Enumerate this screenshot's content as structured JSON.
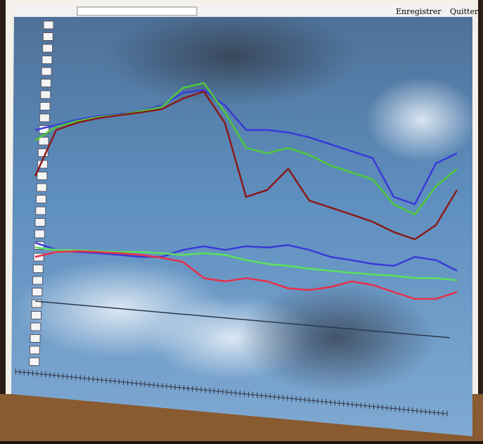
{
  "menu": [
    "Enregistrer",
    "Quitter"
  ],
  "chart_data": {
    "type": "line",
    "categories": [
      null,
      null,
      null,
      null,
      null,
      null,
      null,
      null,
      null,
      null,
      null,
      null,
      null,
      null,
      null,
      null,
      null,
      null,
      null,
      null,
      null
    ],
    "ylim": [
      0,
      100
    ],
    "series": [
      {
        "color": "#3a3ad8",
        "values": [
          71.6,
          72.8,
          74.1,
          75,
          75.5,
          76.2,
          77.6,
          80.7,
          81.4,
          77.6,
          71.6,
          71.6,
          71,
          69.8,
          68.1,
          66.4,
          64.7,
          55.2,
          53.4,
          63.4,
          65.9
        ]
      },
      {
        "color": "#4fc83a",
        "values": [
          69,
          72.4,
          73.8,
          74.8,
          75.3,
          76.2,
          77.2,
          81.9,
          83.1,
          75.9,
          67.2,
          65.9,
          67.2,
          65.5,
          62.9,
          61.2,
          59.5,
          53.4,
          50.9,
          57.8,
          62.1
        ]
      },
      {
        "color": "#8a1a1a",
        "values": [
          60.3,
          71.6,
          73.4,
          74.5,
          75.2,
          75.9,
          76.7,
          79.3,
          81,
          73.3,
          55.2,
          56.9,
          62.1,
          54.3,
          52.6,
          50.9,
          49.1,
          46.6,
          44.8,
          48.3,
          56.9
        ]
      },
      {
        "color": "#3a3ad8",
        "values": [
          44,
          42.2,
          41.7,
          41.4,
          41,
          40.5,
          40.5,
          42.2,
          43.1,
          42.2,
          43.1,
          42.8,
          43.4,
          42.2,
          40.5,
          39.7,
          38.8,
          38.3,
          40.5,
          39.7,
          37.1
        ]
      },
      {
        "color": "#5be05a",
        "values": [
          42.8,
          42.2,
          42.1,
          41.9,
          41.7,
          41.7,
          41.4,
          41,
          41.4,
          41,
          39.7,
          38.8,
          38.3,
          37.6,
          37.1,
          36.6,
          36.2,
          35.9,
          35.3,
          35.3,
          34.8
        ]
      },
      {
        "color": "#e8304a",
        "values": [
          40.5,
          41.7,
          41.9,
          41.7,
          41.4,
          41,
          40.3,
          39.3,
          35.3,
          34.5,
          35.3,
          34.5,
          32.8,
          32.4,
          33.1,
          34.5,
          33.6,
          31.9,
          30.2,
          30.2,
          31.9
        ]
      }
    ]
  }
}
